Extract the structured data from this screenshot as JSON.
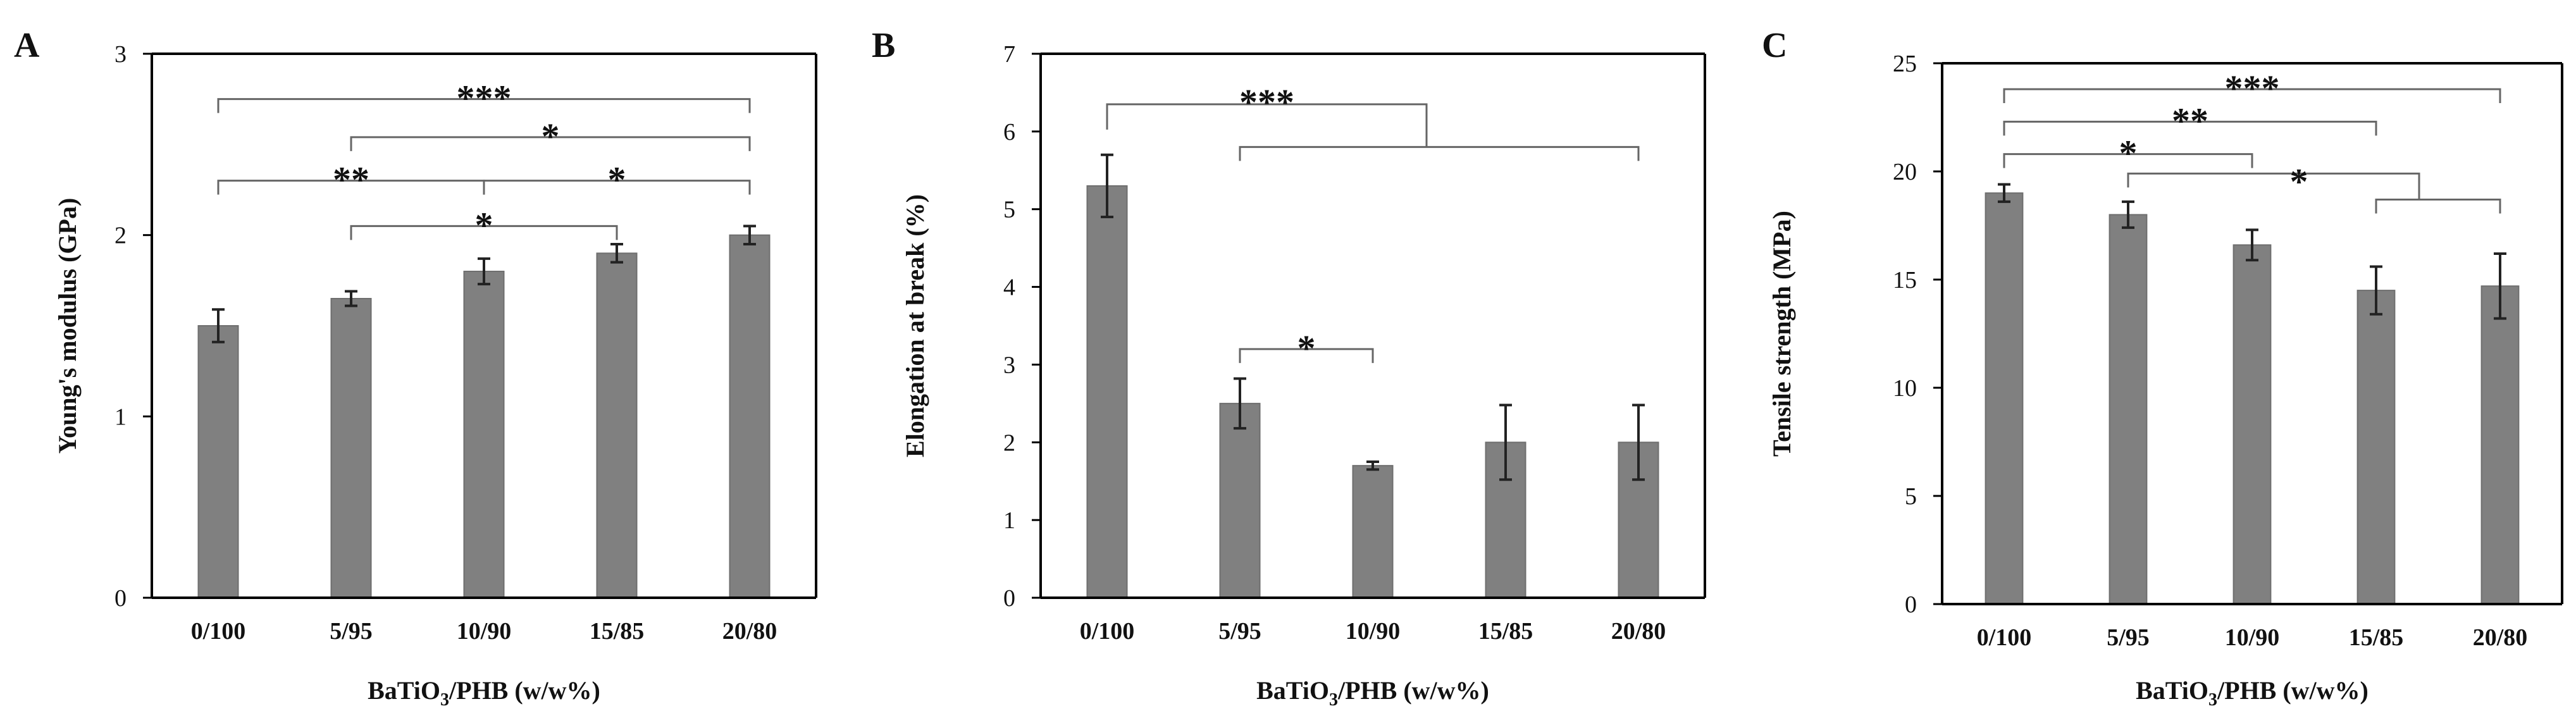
{
  "colors": {
    "bar": "#808080",
    "bar_stroke": "#6e6e6e",
    "axis": "#000000",
    "bracket": "#666666"
  },
  "chart_data": [
    {
      "panel": "A",
      "type": "bar",
      "xlabel": "BaTiO3/PHB (w/w%)",
      "ylabel": "Young's modulus (GPa)",
      "ylim": [
        0,
        3
      ],
      "yticks": [
        0,
        1,
        2,
        3
      ],
      "categories": [
        "0/100",
        "5/95",
        "10/90",
        "15/85",
        "20/80"
      ],
      "values": [
        1.5,
        1.65,
        1.8,
        1.9,
        2.0
      ],
      "errors": [
        0.09,
        0.04,
        0.07,
        0.05,
        0.05
      ],
      "significance": [
        {
          "label": "***",
          "type": "pair",
          "from": 0,
          "to": 4,
          "level": 2.75
        },
        {
          "label": "*",
          "type": "pair",
          "from": 1,
          "to": 4,
          "level": 2.54
        },
        {
          "label": "**",
          "type": "pair",
          "from": 0,
          "to": 2,
          "level": 2.3
        },
        {
          "label": "*",
          "type": "pair",
          "from": 2,
          "to": 4,
          "level": 2.3
        },
        {
          "label": "*",
          "type": "pair",
          "from": 1,
          "to": 3,
          "level": 2.05
        }
      ]
    },
    {
      "panel": "B",
      "type": "bar",
      "xlabel": "BaTiO3/PHB (w/w%)",
      "ylabel": "Elongation at break (%)",
      "ylim": [
        0,
        7
      ],
      "yticks": [
        0,
        1,
        2,
        3,
        4,
        5,
        6,
        7
      ],
      "categories": [
        "0/100",
        "5/95",
        "10/90",
        "15/85",
        "20/80"
      ],
      "values": [
        5.3,
        2.5,
        1.7,
        2.0,
        2.0
      ],
      "errors": [
        0.4,
        0.32,
        0.05,
        0.48,
        0.48
      ],
      "significance": [
        {
          "label": "***",
          "type": "group",
          "from": 0,
          "group_from": 1,
          "group_to": 4,
          "level": 6.35,
          "group_level": 5.8
        },
        {
          "label": "*",
          "type": "pair",
          "from": 1,
          "to": 2,
          "level": 3.2
        }
      ]
    },
    {
      "panel": "C",
      "type": "bar",
      "xlabel": "BaTiO3/PHB (w/w%)",
      "ylabel": "Tensile strength (MPa)",
      "ylim": [
        0,
        25
      ],
      "yticks": [
        0,
        5,
        10,
        15,
        20,
        25
      ],
      "categories": [
        "0/100",
        "5/95",
        "10/90",
        "15/85",
        "20/80"
      ],
      "values": [
        19.0,
        18.0,
        16.6,
        14.5,
        14.7
      ],
      "errors": [
        0.4,
        0.6,
        0.7,
        1.1,
        1.5
      ],
      "significance": [
        {
          "label": "***",
          "type": "pair",
          "from": 0,
          "to": 4,
          "level": 23.8
        },
        {
          "label": "**",
          "type": "pair",
          "from": 0,
          "to": 3,
          "level": 22.3
        },
        {
          "label": "*",
          "type": "pair",
          "from": 0,
          "to": 2,
          "level": 20.8
        },
        {
          "label": "*",
          "type": "nested",
          "from": 1,
          "group_from": 3,
          "group_to": 4,
          "level": 19.9,
          "group_level": 18.7
        }
      ]
    }
  ]
}
